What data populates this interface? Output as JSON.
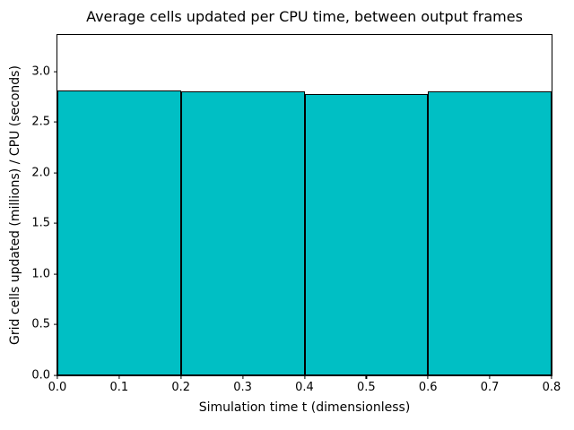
{
  "chart_data": {
    "type": "bar",
    "title": "Average cells updated per CPU time, between output frames",
    "xlabel": "Simulation time t (dimensionless)",
    "ylabel": "Grid cells updated (millions) / CPU (seconds)",
    "bars": [
      {
        "x_start": 0.0,
        "x_end": 0.2,
        "value": 2.81
      },
      {
        "x_start": 0.2,
        "x_end": 0.4,
        "value": 2.8
      },
      {
        "x_start": 0.4,
        "x_end": 0.6,
        "value": 2.78
      },
      {
        "x_start": 0.6,
        "x_end": 0.8,
        "value": 2.8
      }
    ],
    "xlim": [
      0.0,
      0.8
    ],
    "ylim": [
      0.0,
      3.36
    ],
    "x_ticks": [
      0.0,
      0.1,
      0.2,
      0.3,
      0.4,
      0.5,
      0.6,
      0.7,
      0.8
    ],
    "y_ticks": [
      0.0,
      0.5,
      1.0,
      1.5,
      2.0,
      2.5,
      3.0
    ],
    "tick_label_decimals": 1,
    "grid": false,
    "legend": null,
    "colors": {
      "bar_fill": "#00BFC4",
      "bar_edge": "#000000",
      "axis": "#000000",
      "background": "#ffffff",
      "text": "#000000"
    }
  }
}
